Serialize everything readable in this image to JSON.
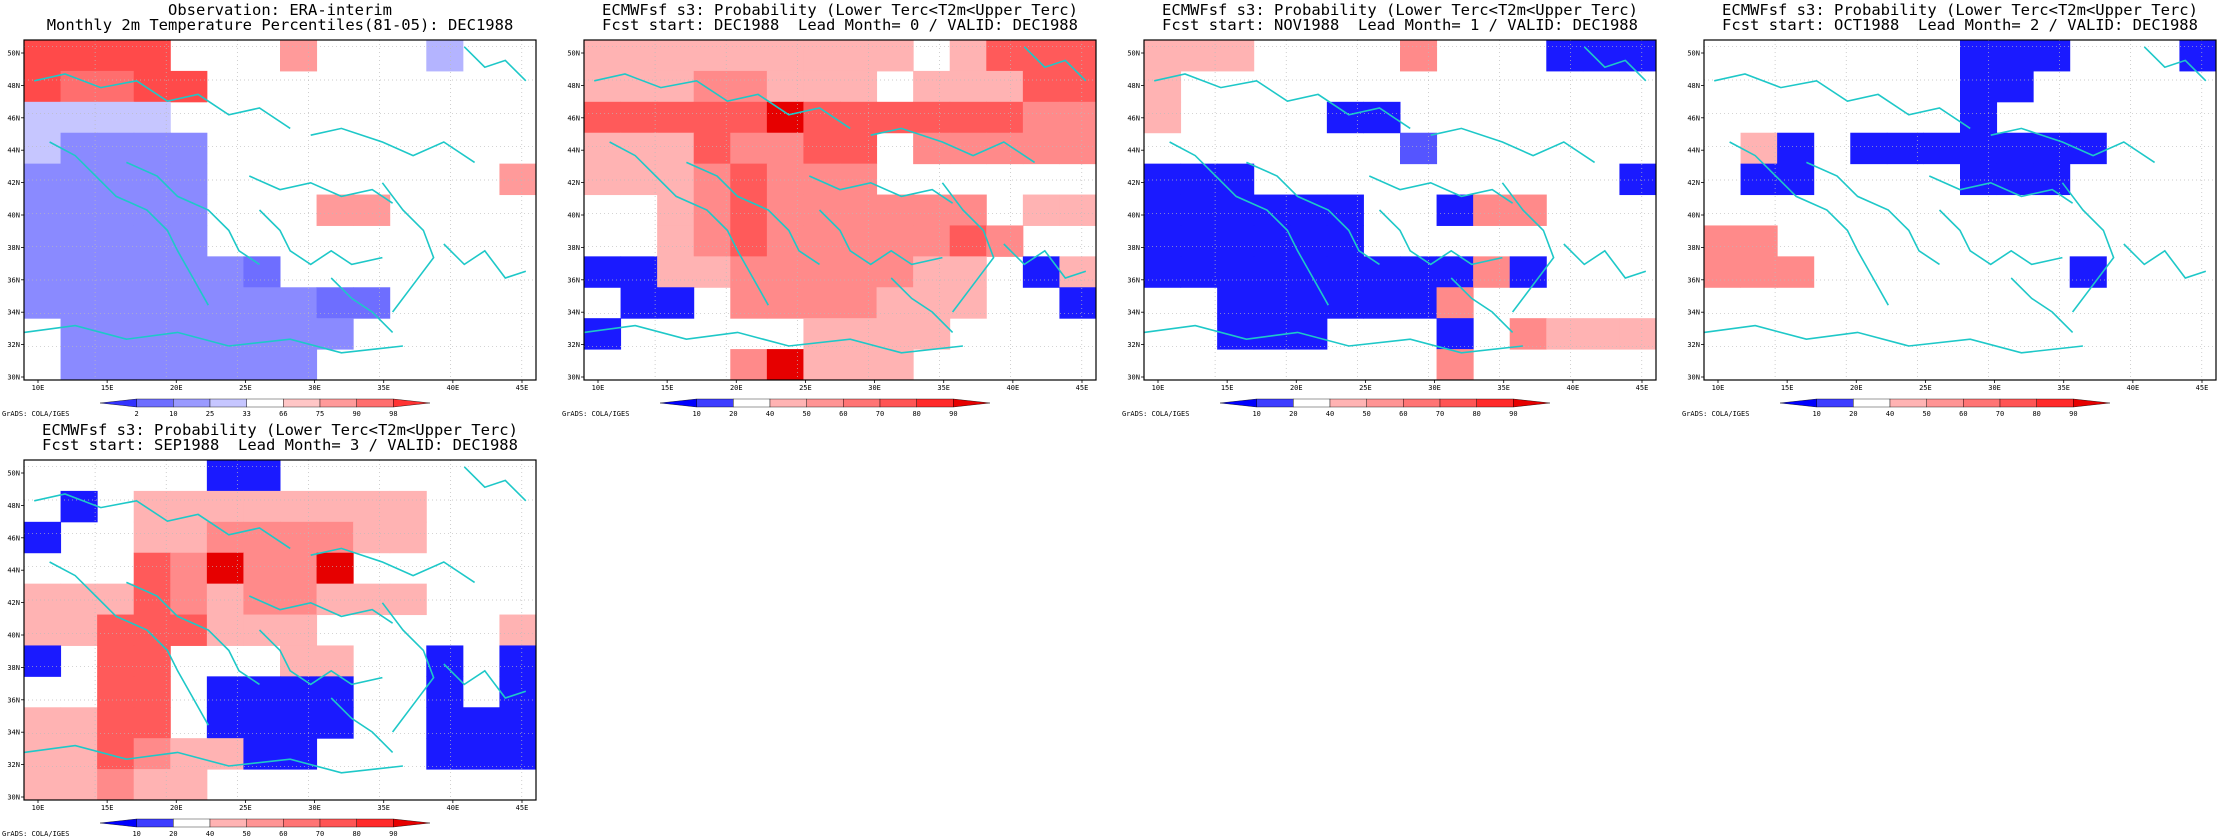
{
  "panels": [
    {
      "title1": "Observation: ERA-interim",
      "title2": "Monthly 2m Temperature Percentiles(81-05): DEC1988",
      "colorbar_labels": [
        "2",
        "10",
        "25",
        "33",
        "66",
        "75",
        "90",
        "98"
      ],
      "credit": "GrADS: COLA/IGES"
    },
    {
      "title1": "ECMWFsf s3: Probability (Lower Terc<T2m<Upper Terc)",
      "title2": "Fcst start: DEC1988  Lead Month= 0 / VALID: DEC1988",
      "colorbar_labels": [
        "10",
        "20",
        "40",
        "50",
        "60",
        "70",
        "80",
        "90"
      ],
      "credit": "GrADS: COLA/IGES"
    },
    {
      "title1": "ECMWFsf s3: Probability (Lower Terc<T2m<Upper Terc)",
      "title2": "Fcst start: NOV1988  Lead Month= 1 / VALID: DEC1988",
      "colorbar_labels": [
        "10",
        "20",
        "40",
        "50",
        "60",
        "70",
        "80",
        "90"
      ],
      "credit": "GrADS: COLA/IGES"
    },
    {
      "title1": "ECMWFsf s3: Probability (Lower Terc<T2m<Upper Terc)",
      "title2": "Fcst start: OCT1988  Lead Month= 2 / VALID: DEC1988",
      "colorbar_labels": [
        "10",
        "20",
        "40",
        "50",
        "60",
        "70",
        "80",
        "90"
      ],
      "credit": "GrADS: COLA/IGES"
    },
    {
      "title1": "ECMWFsf s3: Probability (Lower Terc<T2m<Upper Terc)",
      "title2": "Fcst start: SEP1988  Lead Month= 3 / VALID: DEC1988",
      "colorbar_labels": [
        "10",
        "20",
        "40",
        "50",
        "60",
        "70",
        "80",
        "90"
      ],
      "credit": "GrADS: COLA/IGES"
    }
  ],
  "lon_ticks": [
    "10E",
    "15E",
    "20E",
    "25E",
    "30E",
    "35E",
    "40E",
    "45E"
  ],
  "lat_ticks": [
    "30N",
    "32N",
    "34N",
    "36N",
    "38N",
    "40N",
    "42N",
    "44N",
    "46N",
    "48N",
    "50N"
  ],
  "colors": {
    "obs": [
      "#3333ff",
      "#6e6eff",
      "#9a9aff",
      "#c6c6ff",
      "#ffffff",
      "#ffc6c6",
      "#ff9a9a",
      "#ff6e6e",
      "#ff3333"
    ],
    "prob": [
      "#0000ff",
      "#3d3dff",
      "#ffffff",
      "#ffb3b3",
      "#ff9494",
      "#ff7474",
      "#ff5454",
      "#ff2a2a",
      "#e60000"
    ],
    "coast": "#1ec8c8"
  }
}
